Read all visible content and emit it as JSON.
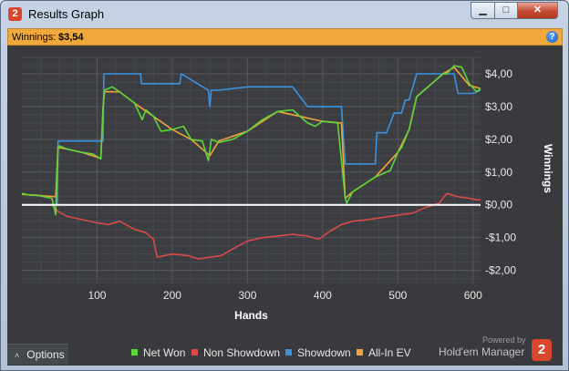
{
  "window": {
    "title": "Results Graph",
    "app_icon_glyph": "2",
    "minimize_glyph": "▁",
    "maximize_glyph": "□",
    "close_glyph": "✕"
  },
  "winnings_bar": {
    "label": "Winnings:",
    "value": "$3,54",
    "help_glyph": "?"
  },
  "colors": {
    "accent": "#f2a93b",
    "net_won": "#5cd63a",
    "non_showdown": "#d94a4a",
    "showdown": "#3b93e0",
    "all_in_ev": "#f2a33a",
    "panel_bg": "#383a3d"
  },
  "options": {
    "label": "Options",
    "chevron": "˄"
  },
  "brand": {
    "powered_by": "Powered by",
    "name": "Hold'em Manager",
    "logo_glyph": "2"
  },
  "chart_data": {
    "type": "line",
    "xlabel": "Hands",
    "ylabel": "Winnings",
    "xlim": [
      0,
      610
    ],
    "ylim": [
      -2.4,
      4.5
    ],
    "xticks": [
      100,
      200,
      300,
      400,
      500,
      600
    ],
    "yticks": [
      -2,
      -1,
      0,
      1,
      2,
      3,
      4
    ],
    "ytick_labels": [
      "-$2,00",
      "-$1,00",
      "$0,00",
      "$1,00",
      "$2,00",
      "$3,00",
      "$4,00"
    ],
    "grid": true,
    "legend_position": "bottom",
    "series": [
      {
        "name": "Net Won",
        "x": [
          0,
          10,
          20,
          30,
          40,
          45,
          48,
          50,
          60,
          80,
          95,
          105,
          108,
          110,
          120,
          130,
          150,
          160,
          165,
          175,
          185,
          200,
          215,
          225,
          240,
          248,
          252,
          262,
          280,
          300,
          320,
          340,
          360,
          370,
          380,
          390,
          400,
          420,
          430,
          432,
          440,
          450,
          470,
          490,
          500,
          505,
          515,
          525,
          535,
          545,
          555,
          560,
          565,
          575,
          585,
          595,
          605,
          610
        ],
        "y": [
          0.35,
          0.3,
          0.3,
          0.25,
          0.2,
          -0.3,
          1.7,
          1.8,
          1.7,
          1.6,
          1.55,
          1.4,
          3.0,
          3.5,
          3.6,
          3.45,
          3.1,
          2.6,
          2.9,
          2.7,
          2.25,
          2.3,
          2.4,
          2.0,
          1.95,
          1.35,
          2.0,
          1.9,
          2.0,
          2.25,
          2.6,
          2.85,
          2.9,
          2.7,
          2.5,
          2.4,
          2.55,
          2.5,
          0.2,
          0.05,
          0.4,
          0.55,
          0.85,
          1.05,
          1.6,
          1.75,
          2.3,
          3.3,
          3.5,
          3.7,
          3.9,
          4.0,
          4.0,
          4.25,
          4.2,
          3.7,
          3.45,
          3.55
        ]
      },
      {
        "name": "Non Showdown",
        "x": [
          0,
          40,
          48,
          60,
          80,
          100,
          115,
          130,
          150,
          165,
          175,
          180,
          200,
          220,
          235,
          250,
          265,
          280,
          300,
          320,
          340,
          360,
          380,
          395,
          410,
          425,
          440,
          460,
          475,
          490,
          505,
          520,
          535,
          555,
          565,
          580,
          595,
          605,
          610
        ],
        "y": [
          0.0,
          0.0,
          -0.2,
          -0.35,
          -0.45,
          -0.55,
          -0.6,
          -0.5,
          -0.75,
          -0.85,
          -1.05,
          -1.6,
          -1.5,
          -1.55,
          -1.65,
          -1.6,
          -1.55,
          -1.35,
          -1.1,
          -1.0,
          -0.95,
          -0.9,
          -0.95,
          -1.05,
          -0.8,
          -0.6,
          -0.5,
          -0.45,
          -0.4,
          -0.35,
          -0.3,
          -0.25,
          -0.1,
          0.05,
          0.35,
          0.25,
          0.2,
          0.15,
          0.15
        ]
      },
      {
        "name": "Showdown",
        "x": [
          0,
          40,
          47,
          48,
          108,
          109,
          158,
          159,
          210,
          212,
          248,
          250,
          252,
          262,
          300,
          360,
          380,
          385,
          425,
          430,
          440,
          460,
          470,
          472,
          485,
          495,
          505,
          510,
          515,
          525,
          555,
          575,
          580,
          600,
          610
        ],
        "y": [
          0.0,
          0.0,
          0.0,
          1.95,
          1.95,
          4.0,
          4.0,
          3.7,
          3.7,
          4.0,
          3.5,
          3.0,
          3.5,
          3.5,
          3.6,
          3.6,
          3.0,
          3.0,
          3.0,
          1.25,
          1.25,
          1.25,
          1.25,
          2.2,
          2.2,
          2.8,
          2.8,
          3.2,
          3.2,
          4.0,
          4.0,
          4.0,
          3.4,
          3.4,
          3.5
        ]
      },
      {
        "name": "All-In EV",
        "x": [
          0,
          45,
          48,
          60,
          80,
          105,
          108,
          110,
          130,
          150,
          175,
          200,
          225,
          250,
          262,
          300,
          340,
          370,
          400,
          425,
          430,
          440,
          470,
          500,
          515,
          525,
          545,
          560,
          575,
          595,
          610
        ],
        "y": [
          0.32,
          0.25,
          1.75,
          1.7,
          1.6,
          1.42,
          3.0,
          3.45,
          3.45,
          3.1,
          2.7,
          2.3,
          2.0,
          1.5,
          1.95,
          2.25,
          2.85,
          2.7,
          2.55,
          2.5,
          0.2,
          0.4,
          0.85,
          1.6,
          2.3,
          3.3,
          3.7,
          4.0,
          4.2,
          3.65,
          3.55
        ]
      }
    ]
  }
}
